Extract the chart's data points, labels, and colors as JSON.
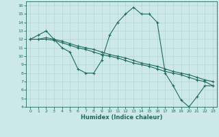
{
  "xlabel": "Humidex (Indice chaleur)",
  "background_color": "#cde8e8",
  "grid_color": "#b8d8d8",
  "line_color": "#1a6b5a",
  "xlim": [
    -0.5,
    23.5
  ],
  "ylim": [
    4,
    16.5
  ],
  "xticks": [
    0,
    1,
    2,
    3,
    4,
    5,
    6,
    7,
    8,
    9,
    10,
    11,
    12,
    13,
    14,
    15,
    16,
    17,
    18,
    19,
    20,
    21,
    22,
    23
  ],
  "yticks": [
    4,
    5,
    6,
    7,
    8,
    9,
    10,
    11,
    12,
    13,
    14,
    15,
    16
  ],
  "series1_x": [
    0,
    1,
    2,
    3,
    4,
    5,
    6,
    7,
    8,
    9,
    10,
    11,
    12,
    13,
    14,
    15,
    16,
    17,
    18,
    19,
    20,
    21,
    22,
    23
  ],
  "series1_y": [
    12.0,
    12.5,
    13.0,
    12.0,
    11.0,
    10.5,
    8.5,
    8.0,
    8.0,
    9.5,
    12.5,
    14.0,
    15.0,
    15.8,
    15.0,
    15.0,
    14.0,
    8.0,
    6.5,
    4.8,
    4.0,
    5.2,
    6.5,
    6.5
  ],
  "series2_x": [
    0,
    1,
    2,
    3,
    4,
    5,
    6,
    7,
    8,
    9,
    10,
    11,
    12,
    13,
    14,
    15,
    16,
    17,
    18,
    19,
    20,
    21,
    22,
    23
  ],
  "series2_y": [
    12.0,
    12.0,
    12.2,
    12.0,
    11.8,
    11.5,
    11.2,
    11.0,
    10.8,
    10.5,
    10.2,
    10.0,
    9.8,
    9.5,
    9.2,
    9.0,
    8.8,
    8.5,
    8.2,
    8.0,
    7.8,
    7.5,
    7.2,
    7.0
  ],
  "series3_x": [
    0,
    1,
    2,
    3,
    4,
    5,
    6,
    7,
    8,
    9,
    10,
    11,
    12,
    13,
    14,
    15,
    16,
    17,
    18,
    19,
    20,
    21,
    22,
    23
  ],
  "series3_y": [
    12.0,
    12.0,
    12.0,
    11.9,
    11.6,
    11.3,
    11.0,
    10.8,
    10.5,
    10.2,
    10.0,
    9.8,
    9.5,
    9.2,
    9.0,
    8.8,
    8.5,
    8.2,
    8.0,
    7.8,
    7.5,
    7.2,
    7.0,
    6.5
  ],
  "xlabel_fontsize": 6,
  "tick_fontsize": 4.5
}
